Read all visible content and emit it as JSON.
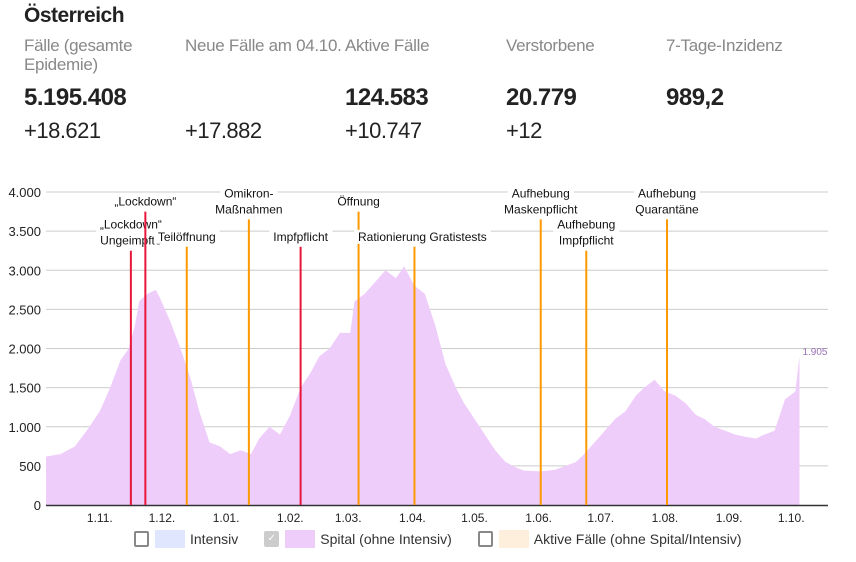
{
  "title": "Österreich",
  "stats": [
    {
      "label": "Fälle (gesamte Epidemie)",
      "value": "5.195.408",
      "change": "+18.621"
    },
    {
      "label": "Neue Fälle am 04.10.",
      "value": "",
      "change": "+17.882"
    },
    {
      "label": "Aktive Fälle",
      "value": "124.583",
      "change": "+10.747"
    },
    {
      "label": "Verstorbene",
      "value": "20.779",
      "change": "+12"
    },
    {
      "label": "7-Tage-Inzidenz",
      "value": "989,2",
      "change": ""
    }
  ],
  "colors": {
    "spital": "#efcdfb",
    "intensiv": "#e0e6fd",
    "aktive": "#fdefdc",
    "red": "#e8173a",
    "orange": "#ff9900",
    "last_label": "#9a72b5"
  },
  "chart_data": {
    "type": "area",
    "x_unit": "days since 06.10.2021",
    "ylim": [
      0,
      4000
    ],
    "yticks": [
      0,
      500,
      1000,
      1500,
      2000,
      2500,
      3000,
      3500,
      4000
    ],
    "ytick_labels": [
      "0",
      "500",
      "1.000",
      "1.500",
      "2.000",
      "2.500",
      "3.000",
      "3.500",
      "4.000"
    ],
    "xticks": [
      {
        "day": 26,
        "label": "1.11."
      },
      {
        "day": 56,
        "label": "1.12."
      },
      {
        "day": 87,
        "label": "1.01."
      },
      {
        "day": 118,
        "label": "1.02."
      },
      {
        "day": 146,
        "label": "1.03."
      },
      {
        "day": 177,
        "label": "1.04."
      },
      {
        "day": 207,
        "label": "1.05."
      },
      {
        "day": 238,
        "label": "1.06."
      },
      {
        "day": 268,
        "label": "1.07."
      },
      {
        "day": 299,
        "label": "1.08."
      },
      {
        "day": 330,
        "label": "1.09."
      },
      {
        "day": 360,
        "label": "1.10."
      }
    ],
    "series": [
      {
        "name": "Spital (ohne Intensiv)",
        "x": [
          0,
          7,
          14,
          21,
          26,
          31,
          36,
          40,
          43,
          45,
          49,
          53,
          55,
          60,
          65,
          70,
          74,
          79,
          84,
          89,
          94,
          99,
          103,
          108,
          113,
          118,
          123,
          128,
          132,
          137,
          142,
          147,
          149,
          154,
          159,
          164,
          169,
          173,
          178,
          183,
          188,
          193,
          198,
          202,
          207,
          212,
          217,
          222,
          227,
          231,
          239,
          246,
          251,
          256,
          260,
          265,
          270,
          275,
          280,
          285,
          289,
          294,
          299,
          304,
          309,
          314,
          318,
          323,
          328,
          333,
          338,
          343,
          347,
          352,
          357,
          362,
          364
        ],
        "values": [
          620,
          650,
          750,
          1000,
          1200,
          1500,
          1850,
          2000,
          2300,
          2600,
          2700,
          2750,
          2650,
          2350,
          2000,
          1600,
          1200,
          800,
          750,
          650,
          700,
          650,
          850,
          1000,
          900,
          1150,
          1500,
          1700,
          1900,
          2000,
          2200,
          2200,
          2600,
          2700,
          2850,
          3000,
          2900,
          3050,
          2800,
          2700,
          2300,
          1800,
          1500,
          1300,
          1100,
          900,
          700,
          550,
          480,
          440,
          430,
          450,
          500,
          550,
          650,
          800,
          950,
          1100,
          1200,
          1400,
          1500,
          1600,
          1450,
          1400,
          1300,
          1150,
          1100,
          1000,
          950,
          900,
          870,
          850,
          900,
          950,
          1350,
          1450,
          1905
        ]
      }
    ],
    "last_value_label": "1.905",
    "events": [
      {
        "day": 41,
        "top": 3250,
        "color": "red",
        "lines": [
          "„Lockdown“",
          "Ungeimpfte"
        ]
      },
      {
        "day": 48,
        "top": 3750,
        "color": "red",
        "lines": [
          "„Lockdown“"
        ]
      },
      {
        "day": 68,
        "top": 3300,
        "color": "orange",
        "lines": [
          "Teilöffnung"
        ]
      },
      {
        "day": 98,
        "top": 3650,
        "color": "orange",
        "lines": [
          "Omikron-",
          "Maßnahmen"
        ]
      },
      {
        "day": 123,
        "top": 3300,
        "color": "red",
        "lines": [
          "Impfpflicht"
        ]
      },
      {
        "day": 151,
        "top": 3750,
        "color": "orange",
        "lines": [
          "Öffnung"
        ]
      },
      {
        "day": 178,
        "top": 3300,
        "color": "orange",
        "lines": [
          "Rationierung Gratistests"
        ]
      },
      {
        "day": 239,
        "top": 3650,
        "color": "orange",
        "lines": [
          "Aufhebung",
          "Maskenpflicht"
        ]
      },
      {
        "day": 261,
        "top": 3250,
        "color": "orange",
        "lines": [
          "Aufhebung",
          "Impfpflicht"
        ]
      },
      {
        "day": 300,
        "top": 3650,
        "color": "orange",
        "lines": [
          "Aufhebung",
          "Quarantäne"
        ]
      }
    ],
    "legend": [
      {
        "label": "Intensiv",
        "checked": false,
        "color": "intensiv"
      },
      {
        "label": "Spital (ohne Intensiv)",
        "checked": true,
        "color": "spital"
      },
      {
        "label": "Aktive Fälle (ohne Spital/Intensiv)",
        "checked": false,
        "color": "aktive"
      }
    ]
  }
}
